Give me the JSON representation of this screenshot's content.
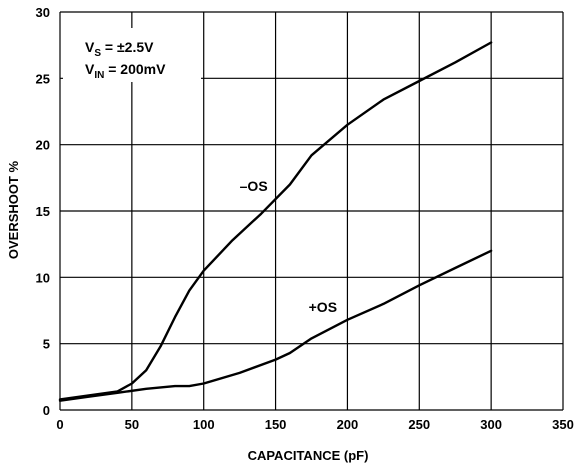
{
  "chart_data": {
    "type": "line",
    "xlabel": "CAPACITANCE (pF)",
    "ylabel": "OVERSHOOT %",
    "xlim": [
      0,
      350
    ],
    "ylim": [
      0,
      30
    ],
    "xticks": [
      0,
      50,
      100,
      150,
      200,
      250,
      300,
      350
    ],
    "yticks": [
      0,
      5,
      10,
      15,
      20,
      25,
      30
    ],
    "grid": true,
    "legend": "none",
    "conditions": {
      "vs_main": "V",
      "vs_sub": "S",
      "vs_value": " = ±2.5V",
      "vin_main": "V",
      "vin_sub": "IN",
      "vin_value": " = 200mV"
    },
    "series": [
      {
        "name": "–OS",
        "label_at": [
          125,
          16.5
        ],
        "points": [
          [
            0,
            0.8
          ],
          [
            20,
            1.1
          ],
          [
            40,
            1.4
          ],
          [
            50,
            2
          ],
          [
            60,
            3
          ],
          [
            70,
            4.8
          ],
          [
            80,
            7
          ],
          [
            90,
            9
          ],
          [
            100,
            10.5
          ],
          [
            120,
            12.8
          ],
          [
            140,
            14.8
          ],
          [
            160,
            17
          ],
          [
            175,
            19.2
          ],
          [
            200,
            21.5
          ],
          [
            225,
            23.4
          ],
          [
            250,
            24.8
          ],
          [
            275,
            26.2
          ],
          [
            300,
            27.7
          ]
        ]
      },
      {
        "name": "+OS",
        "label_at": [
          173,
          7.4
        ],
        "points": [
          [
            0,
            0.7
          ],
          [
            20,
            1.0
          ],
          [
            40,
            1.3
          ],
          [
            60,
            1.6
          ],
          [
            80,
            1.8
          ],
          [
            90,
            1.8
          ],
          [
            100,
            2.0
          ],
          [
            125,
            2.8
          ],
          [
            150,
            3.8
          ],
          [
            160,
            4.3
          ],
          [
            175,
            5.4
          ],
          [
            200,
            6.8
          ],
          [
            225,
            8.0
          ],
          [
            250,
            9.4
          ],
          [
            275,
            10.7
          ],
          [
            300,
            12.0
          ]
        ]
      }
    ]
  }
}
